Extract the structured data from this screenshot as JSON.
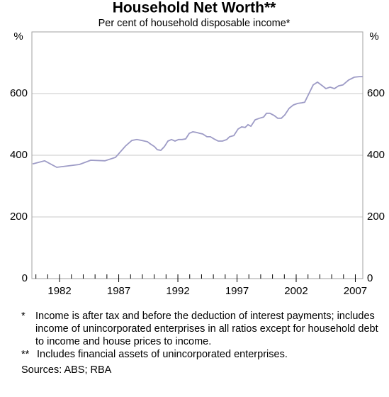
{
  "chart_data": {
    "type": "line",
    "title": "Household Net Worth**",
    "subtitle": "Per cent of household disposable income*",
    "ylabel": "%",
    "x": [
      1979.72,
      1980.74,
      1981.76,
      1983.68,
      1984.63,
      1985.83,
      1986.73,
      1987.57,
      1988.11,
      1988.53,
      1988.95,
      1989.43,
      1989.66,
      1990.02,
      1990.26,
      1990.56,
      1990.86,
      1991.16,
      1991.46,
      1991.76,
      1992.06,
      1992.36,
      1992.66,
      1992.96,
      1993.26,
      1993.56,
      1993.86,
      1994.1,
      1994.46,
      1994.75,
      1995.05,
      1995.41,
      1995.77,
      1996.13,
      1996.37,
      1996.73,
      1997.09,
      1997.39,
      1997.69,
      1997.93,
      1998.17,
      1998.53,
      1998.89,
      1999.25,
      1999.49,
      1999.78,
      2000.14,
      2000.44,
      2000.74,
      2001.04,
      2001.4,
      2001.76,
      2002.12,
      2002.48,
      2002.72,
      2003.08,
      2003.44,
      2003.8,
      2004.22,
      2004.51,
      2004.87,
      2005.23,
      2005.59,
      2005.95,
      2006.43,
      2006.91,
      2007.33,
      2007.63
    ],
    "values": [
      372,
      382,
      361,
      370,
      384,
      382,
      393,
      430,
      448,
      451,
      448,
      444,
      437,
      428,
      418,
      416,
      428,
      446,
      451,
      446,
      451,
      451,
      453,
      471,
      476,
      474,
      471,
      469,
      460,
      460,
      453,
      446,
      446,
      451,
      460,
      464,
      485,
      492,
      490,
      499,
      494,
      515,
      520,
      524,
      536,
      536,
      529,
      520,
      520,
      531,
      552,
      563,
      568,
      570,
      572,
      600,
      628,
      637,
      625,
      616,
      621,
      616,
      625,
      628,
      644,
      653,
      655,
      655
    ],
    "color": "#9d9bc6",
    "xlim": [
      1979.66,
      2007.63
    ],
    "xticks": [
      1982,
      1987,
      1992,
      1997,
      2002,
      2007
    ],
    "minor_xticks": [
      1980,
      1981,
      1982,
      1983,
      1984,
      1985,
      1986,
      1987,
      1988,
      1989,
      1990,
      1991,
      1992,
      1993,
      1994,
      1995,
      1996,
      1997,
      1998,
      1999,
      2000,
      2001,
      2002,
      2003,
      2004,
      2005,
      2006,
      2007
    ],
    "ylim": [
      0,
      800
    ],
    "yticks": [
      0,
      200,
      400,
      600
    ],
    "grid": true
  },
  "notes": [
    {
      "marker": "*",
      "text": "Income is after tax and before the deduction of interest payments; includes income of unincorporated enterprises in all ratios except for household debt to income and house prices to income."
    },
    {
      "marker": "**",
      "text": "Includes financial assets of unincorporated enterprises."
    }
  ],
  "sources": "Sources: ABS; RBA"
}
